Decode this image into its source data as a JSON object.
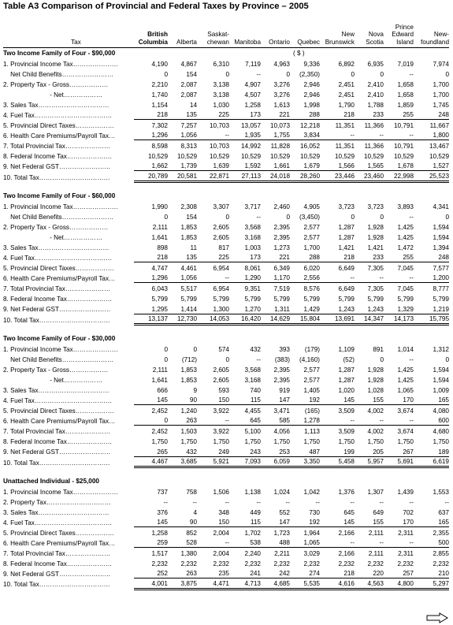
{
  "title": "Table A3   Comparison of Provincial and Federal Taxes by Province – 2005",
  "header": {
    "tax": "Tax",
    "provinces": [
      {
        "lines": [
          "",
          "British",
          "Columbia"
        ],
        "bold": true
      },
      {
        "lines": [
          "",
          "",
          "Alberta"
        ],
        "bold": false
      },
      {
        "lines": [
          "",
          "Saskat-",
          "chewan"
        ],
        "bold": false
      },
      {
        "lines": [
          "",
          "",
          "Manitoba"
        ],
        "bold": false
      },
      {
        "lines": [
          "",
          "",
          "Ontario"
        ],
        "bold": false
      },
      {
        "lines": [
          "",
          "",
          "Quebec"
        ],
        "bold": false
      },
      {
        "lines": [
          "",
          "New",
          "Brunswick"
        ],
        "bold": false
      },
      {
        "lines": [
          "",
          "Nova",
          "Scotia"
        ],
        "bold": false
      },
      {
        "lines": [
          "Prince",
          "Edward",
          "Island"
        ],
        "bold": false
      },
      {
        "lines": [
          "",
          "New-",
          "foundland"
        ],
        "bold": false
      }
    ]
  },
  "unit_label": "( $ )",
  "sections": [
    {
      "heading": "Two Income Family of Four - $90,000",
      "rows": [
        {
          "label": "1. Provincial Income Tax…………………",
          "values": [
            "4,190",
            "4,867",
            "6,310",
            "7,119",
            "4,963",
            "9,336",
            "6,892",
            "6,935",
            "7,019",
            "7,974"
          ],
          "style": ""
        },
        {
          "label": "    Net Child Benefits……………………",
          "values": [
            "0",
            "154",
            "0",
            "--",
            "0",
            "(2,350)",
            "0",
            "0",
            "--",
            "0"
          ],
          "style": ""
        },
        {
          "label": "2. Property Tax - Gross………………",
          "values": [
            "2,210",
            "2,087",
            "3,138",
            "4,907",
            "3,276",
            "2,946",
            "2,451",
            "2,410",
            "1,658",
            "1,700"
          ],
          "style": ""
        },
        {
          "label": "                          - Net………………",
          "values": [
            "1,740",
            "2,087",
            "3,138",
            "4,507",
            "3,276",
            "2,946",
            "2,451",
            "2,410",
            "1,658",
            "1,700"
          ],
          "style": ""
        },
        {
          "label": "3. Sales Tax……………………………",
          "values": [
            "1,154",
            "14",
            "1,030",
            "1,258",
            "1,613",
            "1,998",
            "1,790",
            "1,788",
            "1,859",
            "1,745"
          ],
          "style": ""
        },
        {
          "label": "4. Fuel Tax………………………………",
          "values": [
            "218",
            "135",
            "225",
            "173",
            "221",
            "288",
            "218",
            "233",
            "255",
            "248"
          ],
          "style": "ul"
        },
        {
          "label": "5. Provincial Direct Taxes………………",
          "values": [
            "7,302",
            "7,257",
            "10,703",
            "13,057",
            "10,073",
            "12,218",
            "11,351",
            "11,366",
            "10,791",
            "11,667"
          ],
          "style": ""
        },
        {
          "label": "6. Health Care Premiums/Payroll Tax…",
          "values": [
            "1,296",
            "1,056",
            "--",
            "1,935",
            "1,755",
            "3,834",
            "--",
            "--",
            "--",
            "1,800"
          ],
          "style": "ul"
        },
        {
          "label": "7. Total Provincial Tax…………………",
          "values": [
            "8,598",
            "8,313",
            "10,703",
            "14,992",
            "11,828",
            "16,052",
            "11,351",
            "11,366",
            "10,791",
            "13,467"
          ],
          "style": ""
        },
        {
          "label": "8. Federal Income Tax…………………",
          "values": [
            "10,529",
            "10,529",
            "10,529",
            "10,529",
            "10,529",
            "10,529",
            "10,529",
            "10,529",
            "10,529",
            "10,529"
          ],
          "style": ""
        },
        {
          "label": "9. Net Federal GST……………………",
          "values": [
            "1,662",
            "1,739",
            "1,639",
            "1,592",
            "1,661",
            "1,679",
            "1,566",
            "1,565",
            "1,678",
            "1,527"
          ],
          "style": "ul"
        },
        {
          "label": "10. Total Tax……………………………",
          "values": [
            "20,789",
            "20,581",
            "22,871",
            "27,113",
            "24,018",
            "28,260",
            "23,446",
            "23,460",
            "22,998",
            "25,523"
          ],
          "style": "dbl"
        }
      ]
    },
    {
      "heading": "Two Income Family of Four - $60,000",
      "rows": [
        {
          "label": "1. Provincial Income Tax…………………",
          "values": [
            "1,990",
            "2,308",
            "3,307",
            "3,717",
            "2,460",
            "4,905",
            "3,723",
            "3,723",
            "3,893",
            "4,341"
          ],
          "style": ""
        },
        {
          "label": "    Net Child Benefits……………………",
          "values": [
            "0",
            "154",
            "0",
            "--",
            "0",
            "(3,450)",
            "0",
            "0",
            "--",
            "0"
          ],
          "style": ""
        },
        {
          "label": "2. Property Tax - Gross………………",
          "values": [
            "2,111",
            "1,853",
            "2,605",
            "3,568",
            "2,395",
            "2,577",
            "1,287",
            "1,928",
            "1,425",
            "1,594"
          ],
          "style": ""
        },
        {
          "label": "                          - Net………………",
          "values": [
            "1,641",
            "1,853",
            "2,605",
            "3,168",
            "2,395",
            "2,577",
            "1,287",
            "1,928",
            "1,425",
            "1,594"
          ],
          "style": ""
        },
        {
          "label": "3. Sales Tax……………………………",
          "values": [
            "898",
            "11",
            "817",
            "1,003",
            "1,273",
            "1,700",
            "1,421",
            "1,421",
            "1,472",
            "1,394"
          ],
          "style": ""
        },
        {
          "label": "4. Fuel Tax………………………………",
          "values": [
            "218",
            "135",
            "225",
            "173",
            "221",
            "288",
            "218",
            "233",
            "255",
            "248"
          ],
          "style": "ul"
        },
        {
          "label": "5. Provincial Direct Taxes………………",
          "values": [
            "4,747",
            "4,461",
            "6,954",
            "8,061",
            "6,349",
            "6,020",
            "6,649",
            "7,305",
            "7,045",
            "7,577"
          ],
          "style": ""
        },
        {
          "label": "6. Health Care Premiums/Payroll Tax…",
          "values": [
            "1,296",
            "1,056",
            "--",
            "1,290",
            "1,170",
            "2,556",
            "--",
            "--",
            "--",
            "1,200"
          ],
          "style": "ul"
        },
        {
          "label": "7. Total Provincial Tax…………………",
          "values": [
            "6,043",
            "5,517",
            "6,954",
            "9,351",
            "7,519",
            "8,576",
            "6,649",
            "7,305",
            "7,045",
            "8,777"
          ],
          "style": ""
        },
        {
          "label": "8. Federal Income Tax…………………",
          "values": [
            "5,799",
            "5,799",
            "5,799",
            "5,799",
            "5,799",
            "5,799",
            "5,799",
            "5,799",
            "5,799",
            "5,799"
          ],
          "style": ""
        },
        {
          "label": "9. Net Federal GST……………………",
          "values": [
            "1,295",
            "1,414",
            "1,300",
            "1,270",
            "1,311",
            "1,429",
            "1,243",
            "1,243",
            "1,329",
            "1,219"
          ],
          "style": "ul"
        },
        {
          "label": "10. Total Tax……………………………",
          "values": [
            "13,137",
            "12,730",
            "14,053",
            "16,420",
            "14,629",
            "15,804",
            "13,691",
            "14,347",
            "14,173",
            "15,795"
          ],
          "style": "dbl"
        }
      ]
    },
    {
      "heading": "Two Income Family of Four - $30,000",
      "rows": [
        {
          "label": "1. Provincial Income Tax…………………",
          "values": [
            "0",
            "0",
            "574",
            "432",
            "393",
            "(179)",
            "1,109",
            "891",
            "1,014",
            "1,312"
          ],
          "style": ""
        },
        {
          "label": "    Net Child Benefits……………………",
          "values": [
            "0",
            "(712)",
            "0",
            "--",
            "(383)",
            "(4,160)",
            "(52)",
            "0",
            "--",
            "0"
          ],
          "style": ""
        },
        {
          "label": "2. Property Tax - Gross………………",
          "values": [
            "2,111",
            "1,853",
            "2,605",
            "3,568",
            "2,395",
            "2,577",
            "1,287",
            "1,928",
            "1,425",
            "1,594"
          ],
          "style": ""
        },
        {
          "label": "                          - Net………………",
          "values": [
            "1,641",
            "1,853",
            "2,605",
            "3,168",
            "2,395",
            "2,577",
            "1,287",
            "1,928",
            "1,425",
            "1,594"
          ],
          "style": ""
        },
        {
          "label": "3. Sales Tax……………………………",
          "values": [
            "666",
            "9",
            "593",
            "740",
            "919",
            "1,405",
            "1,020",
            "1,028",
            "1,065",
            "1,009"
          ],
          "style": ""
        },
        {
          "label": "4. Fuel Tax………………………………",
          "values": [
            "145",
            "90",
            "150",
            "115",
            "147",
            "192",
            "145",
            "155",
            "170",
            "165"
          ],
          "style": "ul"
        },
        {
          "label": "5. Provincial Direct Taxes………………",
          "values": [
            "2,452",
            "1,240",
            "3,922",
            "4,455",
            "3,471",
            "(165)",
            "3,509",
            "4,002",
            "3,674",
            "4,080"
          ],
          "style": ""
        },
        {
          "label": "6. Health Care Premiums/Payroll Tax…",
          "values": [
            "0",
            "263",
            "--",
            "645",
            "585",
            "1,278",
            "--",
            "--",
            "--",
            "600"
          ],
          "style": "ul"
        },
        {
          "label": "7. Total Provincial Tax…………………",
          "values": [
            "2,452",
            "1,503",
            "3,922",
            "5,100",
            "4,056",
            "1,113",
            "3,509",
            "4,002",
            "3,674",
            "4,680"
          ],
          "style": ""
        },
        {
          "label": "8. Federal Income Tax…………………",
          "values": [
            "1,750",
            "1,750",
            "1,750",
            "1,750",
            "1,750",
            "1,750",
            "1,750",
            "1,750",
            "1,750",
            "1,750"
          ],
          "style": ""
        },
        {
          "label": "9. Net Federal GST……………………",
          "values": [
            "265",
            "432",
            "249",
            "243",
            "253",
            "487",
            "199",
            "205",
            "267",
            "189"
          ],
          "style": "ul"
        },
        {
          "label": "10. Total Tax……………………………",
          "values": [
            "4,467",
            "3,685",
            "5,921",
            "7,093",
            "6,059",
            "3,350",
            "5,458",
            "5,957",
            "5,691",
            "6,619"
          ],
          "style": "dbl"
        }
      ]
    },
    {
      "heading": "Unattached Individual - $25,000",
      "rows": [
        {
          "label": "1. Provincial Income Tax…………………",
          "values": [
            "737",
            "758",
            "1,506",
            "1,138",
            "1,024",
            "1,042",
            "1,376",
            "1,307",
            "1,439",
            "1,553"
          ],
          "style": ""
        },
        {
          "label": "2. Property Tax…………………………",
          "values": [
            "--",
            "--",
            "--",
            "--",
            "--",
            "--",
            "--",
            "--",
            "--",
            "--"
          ],
          "style": ""
        },
        {
          "label": "3. Sales Tax……………………………",
          "values": [
            "376",
            "4",
            "348",
            "449",
            "552",
            "730",
            "645",
            "649",
            "702",
            "637"
          ],
          "style": ""
        },
        {
          "label": "4. Fuel Tax………………………………",
          "values": [
            "145",
            "90",
            "150",
            "115",
            "147",
            "192",
            "145",
            "155",
            "170",
            "165"
          ],
          "style": "ul"
        },
        {
          "label": "5. Provincial Direct Taxes………………",
          "values": [
            "1,258",
            "852",
            "2,004",
            "1,702",
            "1,723",
            "1,964",
            "2,166",
            "2,111",
            "2,311",
            "2,355"
          ],
          "style": ""
        },
        {
          "label": "6. Health Care Premiums/Payroll Tax…",
          "values": [
            "259",
            "528",
            "--",
            "538",
            "488",
            "1,065",
            "--",
            "--",
            "--",
            "500"
          ],
          "style": "ul"
        },
        {
          "label": "7. Total Provincial Tax…………………",
          "values": [
            "1,517",
            "1,380",
            "2,004",
            "2,240",
            "2,211",
            "3,029",
            "2,166",
            "2,111",
            "2,311",
            "2,855"
          ],
          "style": ""
        },
        {
          "label": "8. Federal Income Tax…………………",
          "values": [
            "2,232",
            "2,232",
            "2,232",
            "2,232",
            "2,232",
            "2,232",
            "2,232",
            "2,232",
            "2,232",
            "2,232"
          ],
          "style": ""
        },
        {
          "label": "9. Net Federal GST……………………",
          "values": [
            "252",
            "263",
            "235",
            "241",
            "242",
            "274",
            "218",
            "220",
            "257",
            "210"
          ],
          "style": "ul"
        },
        {
          "label": "10. Total Tax……………………………",
          "values": [
            "4,001",
            "3,875",
            "4,471",
            "4,713",
            "4,685",
            "5,535",
            "4,616",
            "4,563",
            "4,800",
            "5,297"
          ],
          "style": "dbl"
        }
      ]
    }
  ],
  "icons": {
    "next_page": "right-arrow-outline-icon"
  }
}
